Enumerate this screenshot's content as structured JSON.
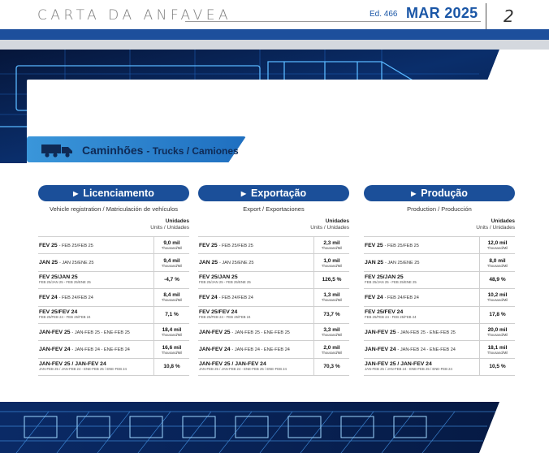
{
  "header": {
    "publication": "CARTA DA ANFAVEA",
    "edition": "Ed. 466",
    "date": "MAR 2025",
    "page": "2"
  },
  "section": {
    "title": "Caminhões",
    "subtitle": "- Trucks / Camiones",
    "icon": "truck-icon"
  },
  "colors": {
    "brand_blue": "#1d4f9c",
    "pill_blue": "#1b4f99",
    "accent_cyan": "#3a96da"
  },
  "columns": [
    {
      "title": "Licenciamento",
      "subtitle": "Vehicle registration / Matriculación de vehículos",
      "units_title": "Unidades",
      "units_sub": "Units / Unidades",
      "rows": [
        {
          "label": "FEV 25",
          "label_sub": "- FEB 25/FEB 25",
          "line2": "",
          "value": "9,0 mil",
          "unit": "Thousand/Mil"
        },
        {
          "label": "JAN 25",
          "label_sub": "- JAN 25/ENE 25",
          "line2": "",
          "value": "9,4 mil",
          "unit": "Thousand/Mil"
        },
        {
          "label": "FEV 25/JAN 25",
          "label_sub": "",
          "line2": "FEB 25/JAN 25 - FEB 25/ENE 25",
          "value": "-4,7 %",
          "unit": ""
        },
        {
          "label": "FEV 24",
          "label_sub": "- FEB 24/FEB 24",
          "line2": "",
          "value": "8,4 mil",
          "unit": "Thousand/Mil"
        },
        {
          "label": "FEV 25/FEV 24",
          "label_sub": "",
          "line2": "FEB 25/FEB 24 - FEB 25/FEB 24",
          "value": "7,1 %",
          "unit": ""
        },
        {
          "label": "JAN-FEV 25",
          "label_sub": "- JAN-FEB 25 - ENE-FEB 25",
          "line2": "",
          "value": "18,4 mil",
          "unit": "Thousand/Mil"
        },
        {
          "label": "JAN-FEV 24",
          "label_sub": "- JAN-FEB 24 - ENE-FEB 24",
          "line2": "",
          "value": "16,6 mil",
          "unit": "Thousand/Mil"
        },
        {
          "label": "JAN-FEV 25 / JAN-FEV 24",
          "label_sub": "",
          "line2": "JAN-FEB 25 / JAN-FEB 24 - ENE-FEB 25 / ENE-FEB 24",
          "value": "10,8 %",
          "unit": ""
        }
      ]
    },
    {
      "title": "Exportação",
      "subtitle": "Export / Exportaciones",
      "units_title": "Unidades",
      "units_sub": "Units / Unidades",
      "rows": [
        {
          "label": "FEV 25",
          "label_sub": "- FEB 25/FEB 25",
          "line2": "",
          "value": "2,3 mil",
          "unit": "Thousand/Mil"
        },
        {
          "label": "JAN 25",
          "label_sub": "- JAN 25/ENE 25",
          "line2": "",
          "value": "1,0 mil",
          "unit": "Thousand/Mil"
        },
        {
          "label": "FEV 25/JAN 25",
          "label_sub": "",
          "line2": "FEB 25/JAN 25 - FEB 25/ENE 25",
          "value": "126,5 %",
          "unit": ""
        },
        {
          "label": "FEV 24",
          "label_sub": "- FEB 24/FEB 24",
          "line2": "",
          "value": "1,3 mil",
          "unit": "Thousand/Mil"
        },
        {
          "label": "FEV 25/FEV 24",
          "label_sub": "",
          "line2": "FEB 25/FEB 24 - FEB 25/FEB 24",
          "value": "73,7 %",
          "unit": ""
        },
        {
          "label": "JAN-FEV 25",
          "label_sub": "- JAN-FEB 25 - ENE-FEB 25",
          "line2": "",
          "value": "3,3 mil",
          "unit": "Thousand/Mil"
        },
        {
          "label": "JAN-FEV 24",
          "label_sub": "- JAN-FEB 24 - ENE-FEB 24",
          "line2": "",
          "value": "2,0 mil",
          "unit": "Thousand/Mil"
        },
        {
          "label": "JAN-FEV 25 / JAN-FEV 24",
          "label_sub": "",
          "line2": "JAN-FEB 25 / JAN-FEB 24 - ENE-FEB 25 / ENE-FEB 24",
          "value": "70,3 %",
          "unit": ""
        }
      ]
    },
    {
      "title": "Produção",
      "subtitle": "Production / Producción",
      "units_title": "Unidades",
      "units_sub": "Units / Unidades",
      "rows": [
        {
          "label": "FEV 25",
          "label_sub": "- FEB 25/FEB 25",
          "line2": "",
          "value": "12,0 mil",
          "unit": "Thousand/Mil"
        },
        {
          "label": "JAN 25",
          "label_sub": "- JAN 25/ENE 25",
          "line2": "",
          "value": "8,0 mil",
          "unit": "Thousand/Mil"
        },
        {
          "label": "FEV 25/JAN 25",
          "label_sub": "",
          "line2": "FEB 25/JAN 25 - FEB 25/ENE 25",
          "value": "48,9 %",
          "unit": ""
        },
        {
          "label": "FEV 24",
          "label_sub": "- FEB 24/FEB 24",
          "line2": "",
          "value": "10,2 mil",
          "unit": "Thousand/Mil"
        },
        {
          "label": "FEV 25/FEV 24",
          "label_sub": "",
          "line2": "FEB 25/FEB 24 - FEB 25/FEB 24",
          "value": "17,8 %",
          "unit": ""
        },
        {
          "label": "JAN-FEV 25",
          "label_sub": "- JAN-FEB 25 - ENE-FEB 25",
          "line2": "",
          "value": "20,0 mil",
          "unit": "Thousand/Mil"
        },
        {
          "label": "JAN-FEV 24",
          "label_sub": "- JAN-FEB 24 - ENE-FEB 24",
          "line2": "",
          "value": "18,1 mil",
          "unit": "Thousand/Mil"
        },
        {
          "label": "JAN-FEV 25 / JAN-FEV 24",
          "label_sub": "",
          "line2": "JAN-FEB 25 / JAN-FEB 24 - ENE-FEB 25 / ENE-FEB 24",
          "value": "10,5 %",
          "unit": ""
        }
      ]
    }
  ]
}
